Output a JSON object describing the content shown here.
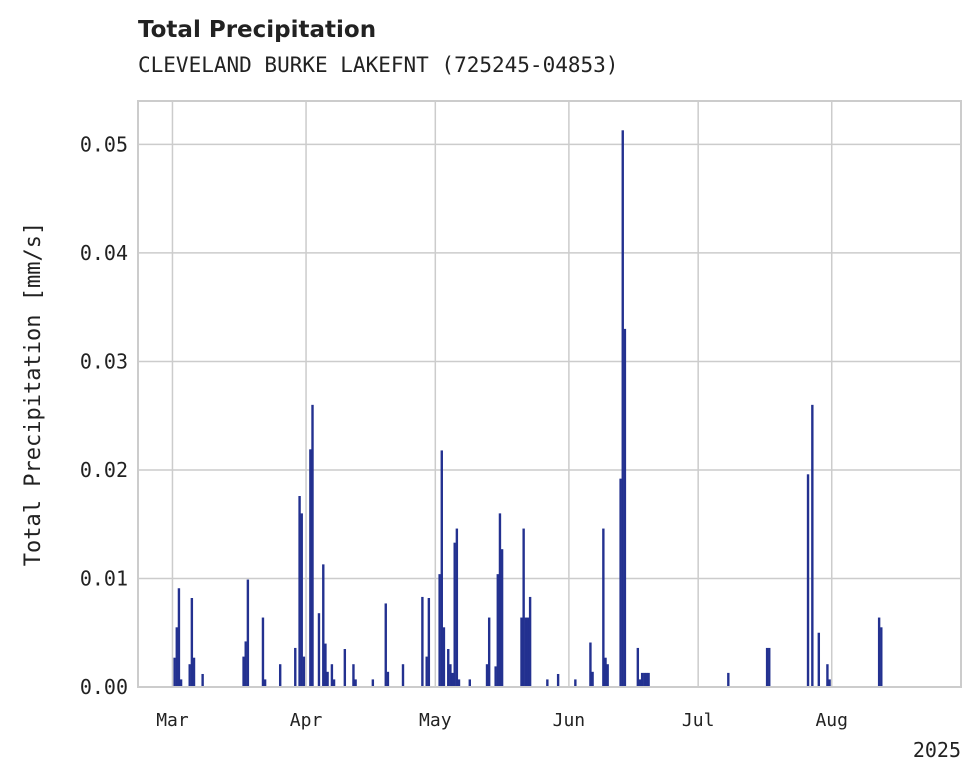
{
  "chart_data": {
    "type": "bar",
    "title": "Total Precipitation",
    "subtitle": "CLEVELAND BURKE LAKEFNT (725245-04853)",
    "ylabel": "Total Precipitation [mm/s]",
    "xlabel": "",
    "year_label": "2025",
    "ylim": [
      0,
      0.054
    ],
    "xlim": [
      "2025-02-21",
      "2025-08-31"
    ],
    "grid": true,
    "yticks": [
      {
        "value": 0.0,
        "label": "0.00"
      },
      {
        "value": 0.01,
        "label": "0.01"
      },
      {
        "value": 0.02,
        "label": "0.02"
      },
      {
        "value": 0.03,
        "label": "0.03"
      },
      {
        "value": 0.04,
        "label": "0.04"
      },
      {
        "value": 0.05,
        "label": "0.05"
      }
    ],
    "xticks": [
      {
        "date": "2025-03-01",
        "label": "Mar"
      },
      {
        "date": "2025-04-01",
        "label": "Apr"
      },
      {
        "date": "2025-05-01",
        "label": "May"
      },
      {
        "date": "2025-06-01",
        "label": "Jun"
      },
      {
        "date": "2025-07-01",
        "label": "Jul"
      },
      {
        "date": "2025-08-01",
        "label": "Aug"
      }
    ],
    "bar_color": "#233190",
    "series": [
      {
        "x": [
          "2025-02-29T12",
          "2025-03-02T00",
          "2025-03-02T12",
          "2025-03-03T00",
          "2025-03-05T00",
          "2025-03-05T12",
          "2025-03-06T00",
          "2025-03-08T00",
          "2025-03-17T12",
          "2025-03-18T00",
          "2025-03-18T12",
          "2025-03-22T00",
          "2025-03-22T12",
          "2025-03-26T00",
          "2025-03-29T12",
          "2025-03-30T12",
          "2025-03-31T00",
          "2025-03-31T12",
          "2025-04-02T00",
          "2025-04-02T12",
          "2025-04-04T00",
          "2025-04-05T00",
          "2025-04-05T12",
          "2025-04-06T00",
          "2025-04-07T00",
          "2025-04-07T12",
          "2025-04-10T00",
          "2025-04-12T00",
          "2025-04-12T12",
          "2025-04-16T12",
          "2025-04-19T12",
          "2025-04-20T00",
          "2025-04-23T12",
          "2025-04-28T00",
          "2025-04-29T00",
          "2025-04-29T12",
          "2025-05-02T00",
          "2025-05-02T12",
          "2025-05-03T00",
          "2025-05-04T00",
          "2025-05-04T12",
          "2025-05-05T00",
          "2025-05-05T12",
          "2025-05-06T00",
          "2025-05-06T12",
          "2025-05-09T00",
          "2025-05-13T00",
          "2025-05-13T12",
          "2025-05-15T00",
          "2025-05-15T12",
          "2025-05-16T00",
          "2025-05-16T12",
          "2025-05-21T00",
          "2025-05-21T12",
          "2025-05-22T00",
          "2025-05-22T12",
          "2025-05-23T00",
          "2025-05-27T00",
          "2025-05-29T12",
          "2025-06-02T12",
          "2025-06-06T00",
          "2025-06-06T12",
          "2025-06-09T00",
          "2025-06-09T12",
          "2025-06-10T00",
          "2025-06-13T00",
          "2025-06-13T12",
          "2025-06-14T00",
          "2025-06-17T00",
          "2025-06-17T12",
          "2025-06-18T00",
          "2025-06-18T12",
          "2025-06-19T00",
          "2025-06-19T12",
          "2025-07-08T00",
          "2025-07-17T00",
          "2025-07-17T12",
          "2025-07-26T12",
          "2025-07-27T12",
          "2025-07-29T00",
          "2025-07-31T00",
          "2025-07-31T12",
          "2025-08-12T00",
          "2025-08-12T12"
        ],
        "values": [
          0.0027,
          0.0055,
          0.0091,
          0.0007,
          0.0021,
          0.0082,
          0.0027,
          0.0012,
          0.0028,
          0.0042,
          0.0099,
          0.0064,
          0.0007,
          0.0021,
          0.0036,
          0.0176,
          0.016,
          0.0028,
          0.0219,
          0.026,
          0.0068,
          0.0113,
          0.004,
          0.0014,
          0.0021,
          0.0007,
          0.0035,
          0.0021,
          0.0007,
          0.0007,
          0.0077,
          0.0014,
          0.0021,
          0.0083,
          0.0028,
          0.0082,
          0.0104,
          0.0218,
          0.0055,
          0.0035,
          0.0021,
          0.0013,
          0.0133,
          0.0146,
          0.0007,
          0.0007,
          0.0021,
          0.0064,
          0.0019,
          0.0104,
          0.016,
          0.0127,
          0.0064,
          0.0146,
          0.0064,
          0.0064,
          0.0083,
          0.0007,
          0.0012,
          0.0007,
          0.0041,
          0.0014,
          0.0146,
          0.0027,
          0.0021,
          0.0192,
          0.0513,
          0.033,
          0.0036,
          0.0007,
          0.0013,
          0.0013,
          0.0013,
          0.0013,
          0.0013,
          0.0036,
          0.0036,
          0.0196,
          0.026,
          0.005,
          0.0021,
          0.0007,
          0.0064,
          0.0055
        ]
      }
    ]
  }
}
